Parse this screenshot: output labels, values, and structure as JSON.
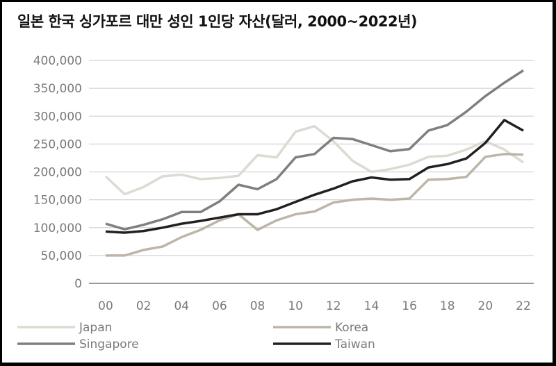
{
  "chart_data": {
    "type": "line",
    "title": "일본 한국 싱가포르 대만 성인 1인당 자산(달러, 2000~2022년)",
    "xlabel": "",
    "ylabel": "",
    "ylim": [
      0,
      400000
    ],
    "yticks": [
      0,
      50000,
      100000,
      150000,
      200000,
      250000,
      300000,
      350000,
      400000
    ],
    "ytick_labels": [
      "0",
      "50,000",
      "100,000",
      "150,000",
      "200,000",
      "250,000",
      "300,000",
      "350,000",
      "400,000"
    ],
    "x": [
      "00",
      "01",
      "02",
      "03",
      "04",
      "05",
      "06",
      "07",
      "08",
      "09",
      "10",
      "11",
      "12",
      "13",
      "14",
      "15",
      "16",
      "17",
      "18",
      "19",
      "20",
      "21",
      "22"
    ],
    "xtick_labels": [
      "00",
      "02",
      "04",
      "06",
      "08",
      "10",
      "12",
      "14",
      "16",
      "18",
      "20",
      "22"
    ],
    "grid": true,
    "legend_position": "bottom",
    "series": [
      {
        "name": "Japan",
        "color": "#dcdad2",
        "values": [
          192000,
          160000,
          173000,
          192000,
          195000,
          187000,
          189000,
          193000,
          230000,
          226000,
          272000,
          282000,
          255000,
          220000,
          200000,
          205000,
          213000,
          227000,
          229000,
          240000,
          255000,
          240000,
          217000
        ]
      },
      {
        "name": "Korea",
        "color": "#bdb6a6",
        "values": [
          50000,
          50000,
          60000,
          66000,
          83000,
          96000,
          113000,
          124000,
          96000,
          113000,
          124000,
          129000,
          145000,
          150000,
          152000,
          150000,
          152000,
          186000,
          187000,
          191000,
          227000,
          232000,
          231000
        ]
      },
      {
        "name": "Singapore",
        "color": "#7f7f7b",
        "values": [
          107000,
          97000,
          105000,
          115000,
          128000,
          128000,
          147000,
          177000,
          169000,
          187000,
          226000,
          232000,
          261000,
          259000,
          248000,
          237000,
          241000,
          274000,
          284000,
          308000,
          336000,
          360000,
          382000
        ]
      },
      {
        "name": "Taiwan",
        "color": "#231f20",
        "values": [
          93000,
          91000,
          94000,
          100000,
          107000,
          112000,
          118000,
          124000,
          124000,
          133000,
          146000,
          159000,
          170000,
          183000,
          190000,
          186000,
          187000,
          208000,
          214000,
          224000,
          252000,
          293000,
          274000
        ]
      }
    ]
  }
}
